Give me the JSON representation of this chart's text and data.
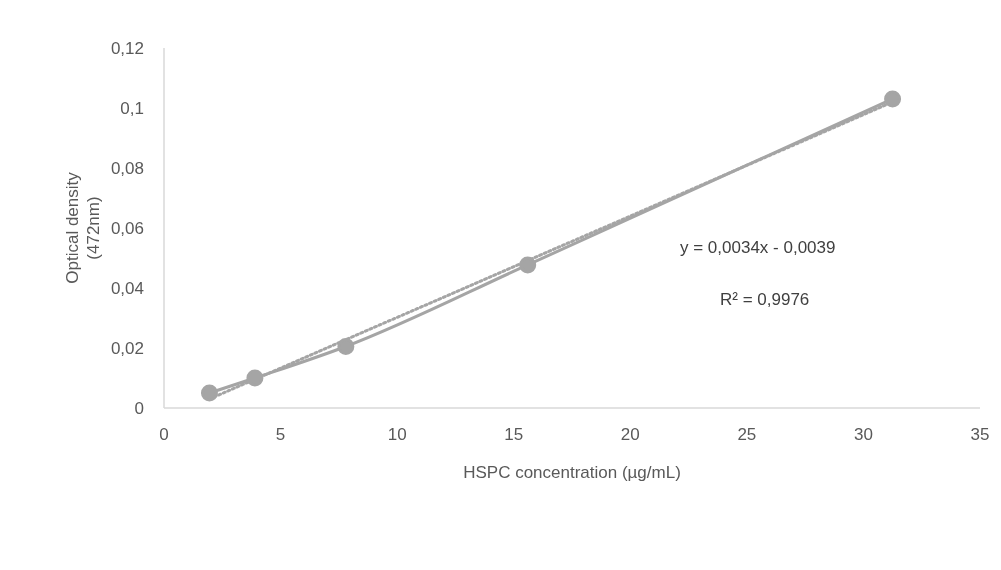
{
  "chart_data": {
    "type": "line",
    "xlabel": "HSPC concentration (µg/mL)",
    "ylabel": "Optical density (472nm)",
    "xlim": [
      0,
      35
    ],
    "xticks": [
      0,
      5,
      10,
      15,
      20,
      25,
      30,
      35
    ],
    "ylim": [
      0,
      0.12
    ],
    "yticks": [
      0,
      {
        "value": 0.02,
        "label": "0,02"
      },
      {
        "value": 0.04,
        "label": "0,04"
      },
      {
        "value": 0.06,
        "label": "0,06"
      },
      {
        "value": 0.08,
        "label": "0,08"
      },
      {
        "value": 0.1,
        "label": "0,1"
      },
      {
        "value": 0.12,
        "label": "0,12"
      }
    ],
    "series": [
      {
        "color": "#a5a5a5",
        "x": [
          1.95,
          3.9,
          7.8,
          15.6,
          31.25
        ],
        "values": [
          0.005,
          0.01,
          0.0205,
          0.0477,
          0.103
        ],
        "marker": "circle",
        "line_style": "solid"
      },
      {
        "color": "#a5a5a5",
        "x": [
          1.95,
          31.25
        ],
        "values": [
          0.003,
          0.102
        ],
        "marker": "none",
        "line_style": "dotted"
      }
    ],
    "annotations": [
      "y = 0,0034x - 0,0039",
      "R² = 0,9976"
    ]
  }
}
